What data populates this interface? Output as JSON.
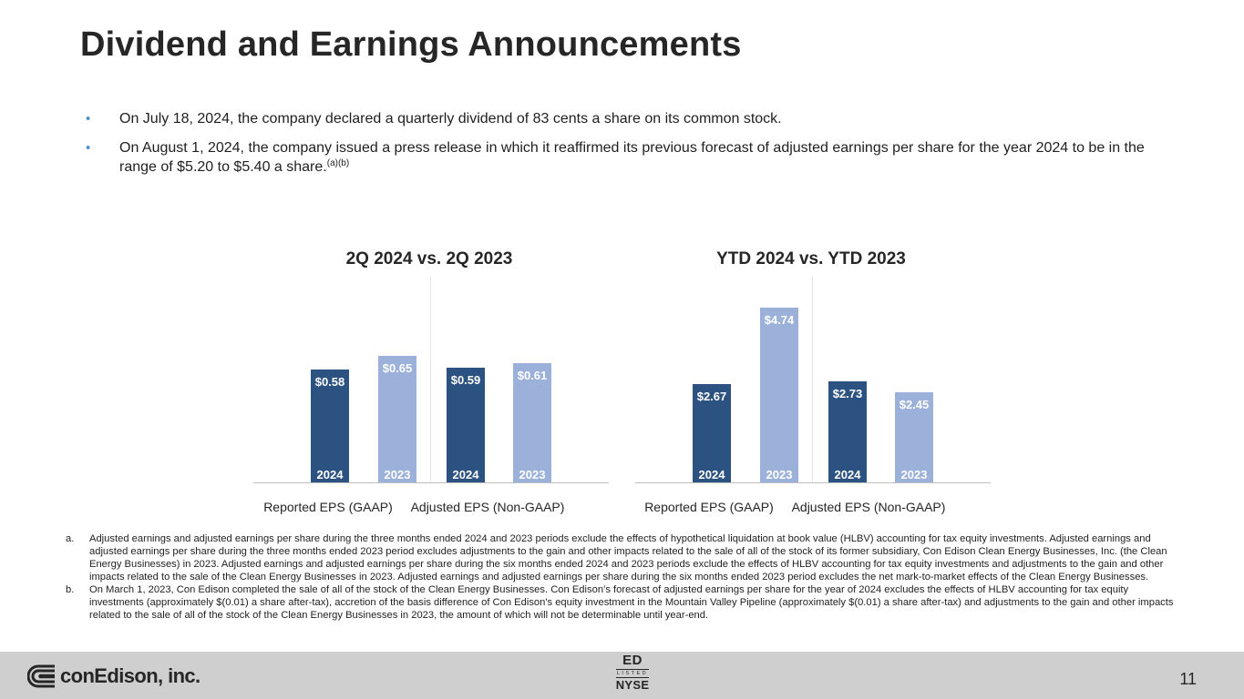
{
  "title": "Dividend and Earnings Announcements",
  "bullets": [
    {
      "text": "On July 18, 2024, the company declared a quarterly dividend of 83 cents a share on its common stock.",
      "sup": ""
    },
    {
      "text": "On August 1, 2024, the company issued a press release in which it reaffirmed its previous forecast of adjusted earnings per share for the year 2024 to be in the range of $5.20 to $5.40 a share.",
      "sup": "(a)(b)"
    }
  ],
  "bullet_marker": "•",
  "colors": {
    "bar_2024": "#2c5281",
    "bar_2023": "#9bb1d9",
    "bullet": "#4e8fcf",
    "footer_bg": "#cfcfcf"
  },
  "chart_data": [
    {
      "type": "bar",
      "title": "2Q 2024 vs. 2Q 2023",
      "groups": [
        "Reported EPS (GAAP)",
        "Adjusted EPS (Non-GAAP)"
      ],
      "series": [
        {
          "name": "2024",
          "values": [
            0.58,
            0.59
          ]
        },
        {
          "name": "2023",
          "values": [
            0.65,
            0.61
          ]
        }
      ],
      "value_labels": [
        [
          "$0.58",
          "$0.65"
        ],
        [
          "$0.59",
          "$0.61"
        ]
      ],
      "ylim": [
        0,
        1.05
      ]
    },
    {
      "type": "bar",
      "title": "YTD 2024 vs. YTD 2023",
      "groups": [
        "Reported EPS (GAAP)",
        "Adjusted EPS (Non-GAAP)"
      ],
      "series": [
        {
          "name": "2024",
          "values": [
            2.67,
            2.73
          ]
        },
        {
          "name": "2023",
          "values": [
            4.74,
            2.45
          ]
        }
      ],
      "value_labels": [
        [
          "$2.67",
          "$4.74"
        ],
        [
          "$2.73",
          "$2.45"
        ]
      ],
      "ylim": [
        0,
        5.55
      ]
    }
  ],
  "footnotes": [
    {
      "letter": "a.",
      "text": "Adjusted earnings and adjusted earnings per share during the three months ended 2024 and 2023 periods exclude the effects of hypothetical liquidation at book value (HLBV) accounting for tax equity investments. Adjusted earnings and adjusted earnings per share during the three months ended 2023 period excludes adjustments to the gain and other impacts related to the sale of all of the stock of its former subsidiary, Con Edison Clean Energy Businesses, Inc. (the Clean Energy Businesses) in 2023. Adjusted earnings and adjusted earnings per share during the six months ended 2024 and 2023 periods exclude the effects of HLBV accounting for tax equity investments and adjustments to the gain and other impacts related to the sale of the Clean Energy Businesses in 2023. Adjusted earnings and adjusted earnings per share during the six months ended 2023 period excludes the net mark-to-market effects of the Clean Energy Businesses."
    },
    {
      "letter": "b.",
      "text": "On March 1, 2023, Con Edison completed the sale of all of the stock of the Clean Energy Businesses. Con Edison’s forecast of adjusted earnings per share for the year of 2024 excludes the effects of HLBV accounting for tax equity investments (approximately $(0.01) a share after-tax), accretion of the basis difference of Con Edison's equity investment in the Mountain Valley Pipeline (approximately $(0.01) a share after-tax) and adjustments to the gain and other impacts related to the sale of all of the stock of the Clean Energy Businesses in 2023, the amount of which will not be determinable until year-end."
    }
  ],
  "footer": {
    "logo_text": "conEdison, inc.",
    "nyse_ticker": "ED",
    "nyse_listed": "LISTED",
    "nyse_exchange": "NYSE",
    "page_number": "11"
  }
}
